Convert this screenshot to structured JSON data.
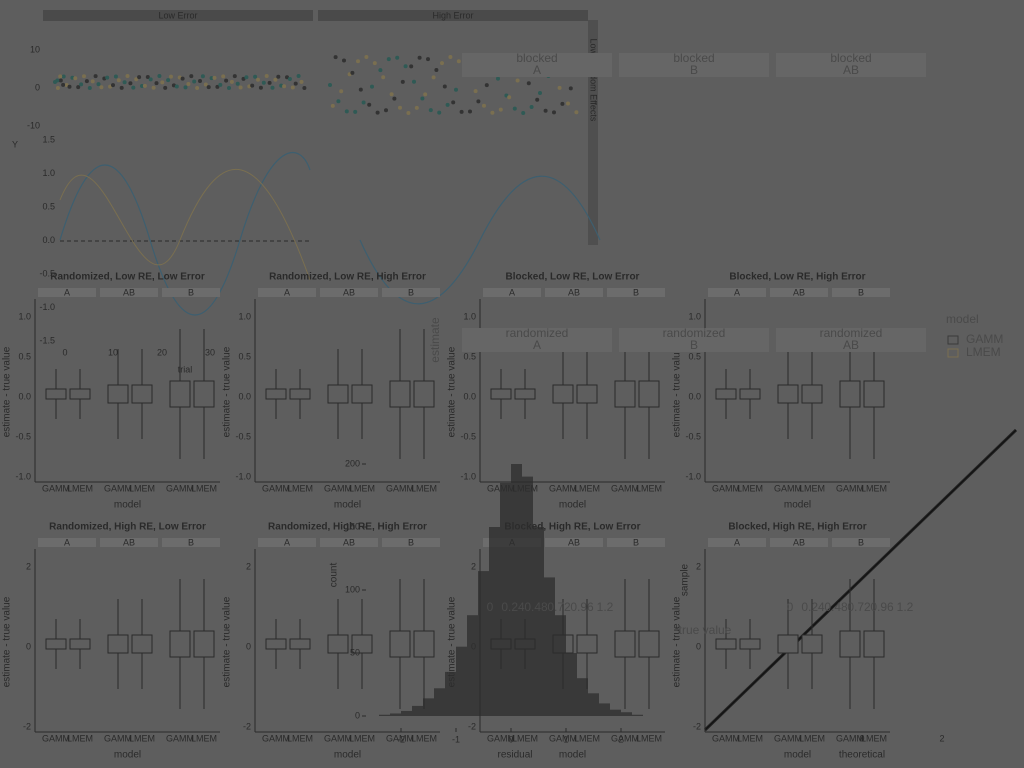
{
  "top_panel": {
    "strips": [
      "Low Error",
      "High Error"
    ],
    "side_strip": "Low Random Effects",
    "y_label": "Y",
    "yticks": [
      "10",
      "0",
      "-10"
    ]
  },
  "sine_panel": {
    "yticks": [
      "1.5",
      "1.0",
      "0.5",
      "0.0",
      "-0.5",
      "-1.0",
      "-1.5"
    ],
    "xticks": [
      "0",
      "10",
      "20",
      "30"
    ],
    "x_label": "trial"
  },
  "box_panels": {
    "titles": [
      "Randomized, Low RE, Low Error",
      "Randomized, Low RE, High Error",
      "Blocked, Low RE, Low Error",
      "Blocked, Low RE, High Error",
      "Randomized, High RE, Low Error",
      "Randomized, High RE, High Error",
      "Blocked, High RE, Low Error",
      "Blocked, High RE, High Error"
    ],
    "facets": [
      "A",
      "AB",
      "B"
    ],
    "models": [
      "GAMM",
      "LMEM"
    ],
    "x_label": "model",
    "y_label": "estimate - true value",
    "yticks_top": [
      "1.0",
      "0.5",
      "0.0",
      "-0.5",
      "-1.0"
    ],
    "yticks_bottom": [
      "2",
      "0",
      "-2"
    ]
  },
  "right_panel": {
    "strips": [
      {
        "top": "blocked",
        "bottom": "A"
      },
      {
        "top": "blocked",
        "bottom": "B"
      },
      {
        "top": "blocked",
        "bottom": "AB"
      },
      {
        "top": "randomized",
        "bottom": "A"
      },
      {
        "top": "randomized",
        "bottom": "B"
      },
      {
        "top": "randomized",
        "bottom": "AB"
      }
    ],
    "y_label": "estimate",
    "legend": {
      "title": "model",
      "items": [
        "GAMM",
        "LMEM"
      ]
    }
  },
  "histogram": {
    "y_label": "count",
    "x_label": "residual",
    "yticks": [
      0,
      50,
      100,
      150,
      200
    ],
    "xticks": [
      -2,
      -1,
      0,
      1,
      2
    ],
    "bin_start": -2.4,
    "bin_width": 0.2,
    "counts": [
      1,
      2,
      4,
      8,
      14,
      22,
      35,
      55,
      80,
      115,
      150,
      185,
      200,
      190,
      150,
      110,
      80,
      50,
      30,
      18,
      10,
      5,
      3,
      1
    ]
  },
  "qq": {
    "y_label": "sample",
    "x_label": "theoretical",
    "xticks": [
      "0",
      "2"
    ]
  },
  "true_value_axis": {
    "label": "true value",
    "ticks": [
      "0",
      "0.24",
      "0.48",
      "0.72",
      "0.96",
      "1.2"
    ]
  }
}
